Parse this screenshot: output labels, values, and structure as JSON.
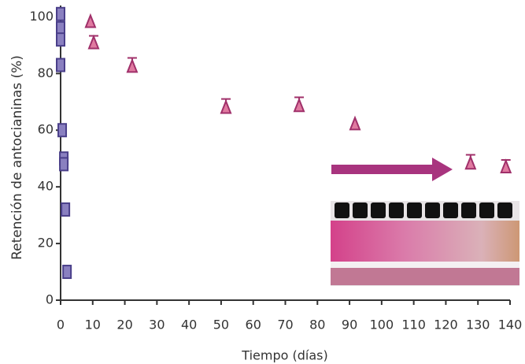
{
  "chart_data": {
    "type": "scatter",
    "x_label": "Tiempo (días)",
    "y_label": "Retención de antocianinas (%)",
    "xlim": [
      0,
      140
    ],
    "xticks": [
      0,
      10,
      20,
      30,
      40,
      50,
      60,
      70,
      80,
      90,
      100,
      110,
      120,
      130,
      140
    ],
    "ylim": [
      0,
      104
    ],
    "yticks": [
      0,
      20,
      40,
      60,
      80,
      100
    ],
    "series": [
      {
        "marker": "square",
        "color": "#8a80c0",
        "x": [
          0,
          0,
          0,
          0,
          0.5,
          1,
          1,
          1.5,
          2
        ],
        "values": [
          101,
          96,
          92,
          83,
          60,
          50,
          48,
          32,
          10
        ]
      },
      {
        "marker": "triangle",
        "color": "#e07aa0",
        "x": [
          9.3,
          10.3,
          22.3,
          51.5,
          74.3,
          91.7,
          127.7,
          138.7
        ],
        "values": [
          98.3,
          90.8,
          82.5,
          68,
          68.6,
          62.2,
          48.3,
          47
        ],
        "errors": [
          null,
          2.5,
          3,
          3,
          3,
          null,
          3,
          2.5
        ]
      }
    ]
  }
}
